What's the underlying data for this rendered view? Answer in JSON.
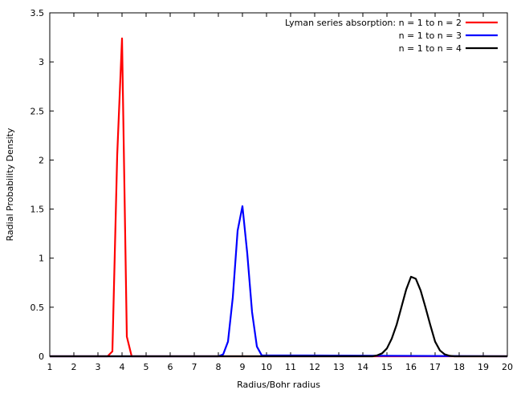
{
  "chart_data": {
    "type": "line",
    "title": "",
    "xlabel": "Radius/Bohr radius",
    "ylabel": "Radial Probability Density",
    "xlim": [
      1,
      20
    ],
    "ylim": [
      0,
      3.5
    ],
    "xticks": [
      "1",
      "2",
      "3",
      "4",
      "5",
      "6",
      "7",
      "8",
      "9",
      "10",
      "11",
      "12",
      "13",
      "14",
      "15",
      "16",
      "17",
      "18",
      "19",
      "20"
    ],
    "yticks": [
      "0",
      "0.5",
      "1",
      "1.5",
      "2",
      "2.5",
      "3",
      "3.5"
    ],
    "grid": false,
    "legend": {
      "position": "top-right",
      "title": "Lyman series absorption:"
    },
    "series": [
      {
        "name": "n = 1 to n = 2",
        "color": "#ff0000",
        "x": [
          1,
          3.4,
          3.6,
          3.8,
          4.0,
          4.2,
          4.4,
          20
        ],
        "y": [
          0,
          0,
          0.05,
          2.05,
          3.24,
          0.2,
          0,
          0
        ]
      },
      {
        "name": "n = 1 to n = 3",
        "color": "#0000ff",
        "x": [
          1,
          8.0,
          8.2,
          8.4,
          8.6,
          8.8,
          9.0,
          9.2,
          9.4,
          9.6,
          9.8,
          20
        ],
        "y": [
          0,
          0,
          0.02,
          0.15,
          0.6,
          1.28,
          1.53,
          1.05,
          0.45,
          0.1,
          0.01,
          0
        ]
      },
      {
        "name": "n = 1 to n = 4",
        "color": "#000000",
        "x": [
          1,
          14.4,
          14.6,
          14.8,
          15.0,
          15.2,
          15.4,
          15.6,
          15.8,
          16.0,
          16.2,
          16.4,
          16.6,
          16.8,
          17.0,
          17.2,
          17.4,
          17.6,
          17.8,
          20
        ],
        "y": [
          0,
          0,
          0.01,
          0.03,
          0.08,
          0.18,
          0.32,
          0.5,
          0.68,
          0.81,
          0.79,
          0.67,
          0.5,
          0.32,
          0.15,
          0.06,
          0.02,
          0.005,
          0,
          0
        ]
      }
    ]
  }
}
